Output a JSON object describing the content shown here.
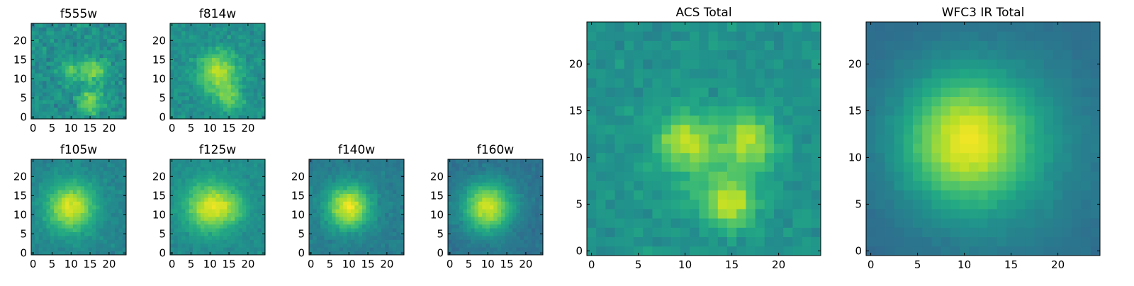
{
  "chart_data": [
    {
      "type": "heatmap",
      "title": "f555w",
      "nx": 25,
      "ny": 25,
      "origin": "lower",
      "colormap": "viridis",
      "xticks": [
        0,
        5,
        10,
        15,
        20
      ],
      "yticks": [
        0,
        5,
        10,
        15,
        20
      ],
      "xlim": [
        -0.5,
        24.5
      ],
      "ylim": [
        -0.5,
        24.5
      ],
      "noise": 0.95,
      "blobs": [
        {
          "x": 16,
          "y": 12,
          "sigma": 2.2,
          "amp": 0.35
        },
        {
          "x": 15,
          "y": 4,
          "sigma": 2.0,
          "amp": 0.35
        },
        {
          "x": 10,
          "y": 12,
          "sigma": 2.0,
          "amp": 0.22
        }
      ],
      "background": 0.5
    },
    {
      "type": "heatmap",
      "title": "f814w",
      "nx": 25,
      "ny": 25,
      "origin": "lower",
      "colormap": "viridis",
      "xticks": [
        0,
        5,
        10,
        15,
        20
      ],
      "yticks": [
        0,
        5,
        10,
        15,
        20
      ],
      "xlim": [
        -0.5,
        24.5
      ],
      "ylim": [
        -0.5,
        24.5
      ],
      "noise": 0.7,
      "blobs": [
        {
          "x": 12,
          "y": 12,
          "sigma": 3.5,
          "amp": 0.4
        },
        {
          "x": 15,
          "y": 5,
          "sigma": 2.5,
          "amp": 0.25
        }
      ],
      "background": 0.5
    },
    {
      "type": "heatmap",
      "title": "f105w",
      "nx": 25,
      "ny": 25,
      "origin": "lower",
      "colormap": "viridis",
      "xticks": [
        0,
        5,
        10,
        15,
        20
      ],
      "yticks": [
        0,
        5,
        10,
        15,
        20
      ],
      "xlim": [
        -0.5,
        24.5
      ],
      "ylim": [
        -0.5,
        24.5
      ],
      "noise": 0.45,
      "blobs": [
        {
          "x": 10,
          "y": 12,
          "sigma": 4.5,
          "amp": 0.5
        }
      ],
      "background": 0.45
    },
    {
      "type": "heatmap",
      "title": "f125w",
      "nx": 25,
      "ny": 25,
      "origin": "lower",
      "colormap": "viridis",
      "xticks": [
        0,
        5,
        10,
        15,
        20
      ],
      "yticks": [
        0,
        5,
        10,
        15,
        20
      ],
      "xlim": [
        -0.5,
        24.5
      ],
      "ylim": [
        -0.5,
        24.5
      ],
      "noise": 0.45,
      "blobs": [
        {
          "x": 10,
          "y": 12,
          "sigma": 4.5,
          "amp": 0.45
        },
        {
          "x": 16,
          "y": 12,
          "sigma": 3.0,
          "amp": 0.15
        }
      ],
      "background": 0.48
    },
    {
      "type": "heatmap",
      "title": "f140w",
      "nx": 25,
      "ny": 25,
      "origin": "lower",
      "colormap": "viridis",
      "xticks": [
        0,
        5,
        10,
        15,
        20
      ],
      "yticks": [
        0,
        5,
        10,
        15,
        20
      ],
      "xlim": [
        -0.5,
        24.5
      ],
      "ylim": [
        -0.5,
        24.5
      ],
      "noise": 0.45,
      "blobs": [
        {
          "x": 10,
          "y": 12,
          "sigma": 4.0,
          "amp": 0.55
        }
      ],
      "background": 0.42
    },
    {
      "type": "heatmap",
      "title": "f160w",
      "nx": 25,
      "ny": 25,
      "origin": "lower",
      "colormap": "viridis",
      "xticks": [
        0,
        5,
        10,
        15,
        20
      ],
      "yticks": [
        0,
        5,
        10,
        15,
        20
      ],
      "xlim": [
        -0.5,
        24.5
      ],
      "ylim": [
        -0.5,
        24.5
      ],
      "noise": 0.4,
      "blobs": [
        {
          "x": 10,
          "y": 12,
          "sigma": 4.5,
          "amp": 0.55
        }
      ],
      "background": 0.38
    },
    {
      "type": "heatmap",
      "title": "ACS Total",
      "nx": 25,
      "ny": 25,
      "origin": "lower",
      "colormap": "viridis",
      "xticks": [
        0,
        5,
        10,
        15,
        20
      ],
      "yticks": [
        0,
        5,
        10,
        15,
        20
      ],
      "xlim": [
        -0.5,
        24.5
      ],
      "ylim": [
        -0.5,
        24.5
      ],
      "noise": 0.6,
      "blobs": [
        {
          "x": 10,
          "y": 12,
          "sigma": 2.0,
          "amp": 0.32
        },
        {
          "x": 17,
          "y": 12,
          "sigma": 2.0,
          "amp": 0.32
        },
        {
          "x": 15,
          "y": 5,
          "sigma": 1.8,
          "amp": 0.35
        },
        {
          "x": 13,
          "y": 9,
          "sigma": 4.0,
          "amp": 0.15
        }
      ],
      "background": 0.5
    },
    {
      "type": "heatmap",
      "title": "WFC3 IR Total",
      "nx": 25,
      "ny": 25,
      "origin": "lower",
      "colormap": "viridis",
      "xticks": [
        0,
        5,
        10,
        15,
        20
      ],
      "yticks": [
        0,
        5,
        10,
        15,
        20
      ],
      "xlim": [
        -0.5,
        24.5
      ],
      "ylim": [
        -0.5,
        24.5
      ],
      "noise": 0.2,
      "blobs": [
        {
          "x": 10,
          "y": 12,
          "sigma": 4.5,
          "amp": 0.45
        },
        {
          "x": 13,
          "y": 11,
          "sigma": 7.0,
          "amp": 0.2
        }
      ],
      "background": 0.35
    }
  ]
}
